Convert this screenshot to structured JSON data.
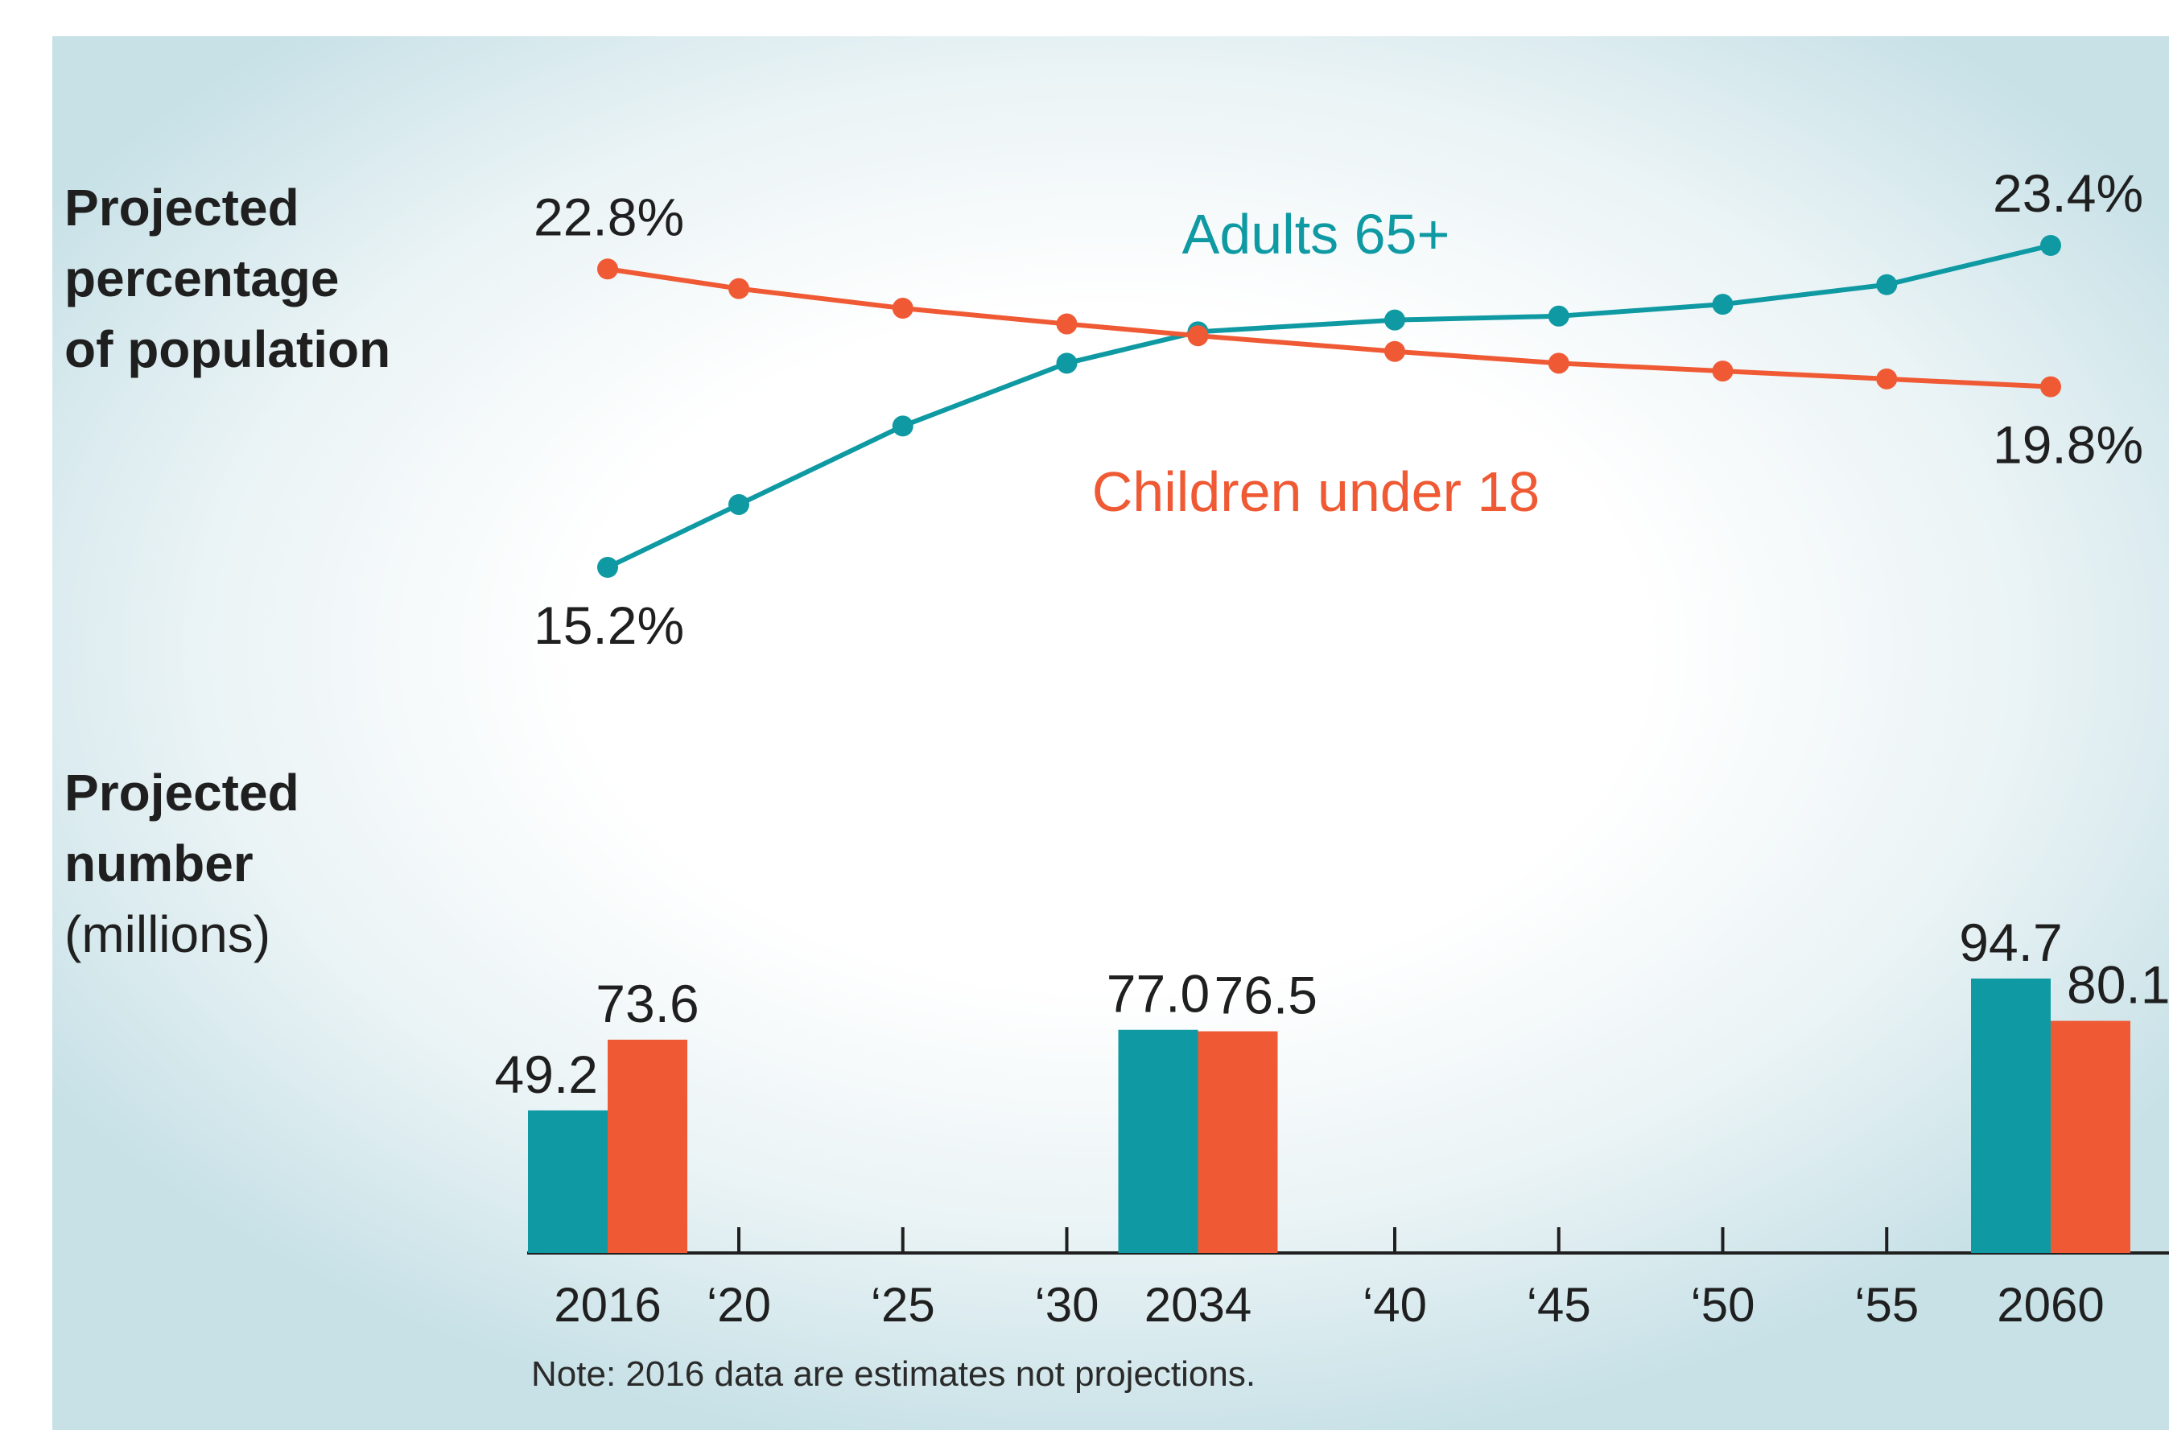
{
  "colors": {
    "teal": "#0f9aa3",
    "orange": "#ef5a35",
    "text": "#1f1f1f"
  },
  "line_section": {
    "title_lines": [
      "Projected",
      "percentage",
      "of population"
    ]
  },
  "bar_section": {
    "title_lines": [
      "Projected",
      "number"
    ],
    "unit": "(millions)"
  },
  "note": "Note: 2016 data are estimates not projections.",
  "chart_data": [
    {
      "type": "line",
      "title": "Projected percentage of population",
      "x": [
        2016,
        2020,
        2025,
        2030,
        2034,
        2040,
        2045,
        2050,
        2055,
        2060
      ],
      "series": [
        {
          "name": "Adults 65+",
          "color": "#0f9aa3",
          "values": [
            15.2,
            16.8,
            18.8,
            20.4,
            21.2,
            21.5,
            21.6,
            21.9,
            22.4,
            23.4
          ]
        },
        {
          "name": "Children under 18",
          "color": "#ef5a35",
          "values": [
            22.8,
            22.3,
            21.8,
            21.4,
            21.1,
            20.7,
            20.4,
            20.2,
            20.0,
            19.8
          ]
        }
      ],
      "point_labels": [
        {
          "series": "Children under 18",
          "x": 2016,
          "text": "22.8%"
        },
        {
          "series": "Adults 65+",
          "x": 2016,
          "text": "15.2%"
        },
        {
          "series": "Adults 65+",
          "x": 2060,
          "text": "23.4%"
        },
        {
          "series": "Children under 18",
          "x": 2060,
          "text": "19.8%"
        }
      ],
      "ylim": [
        15.2,
        23.4
      ]
    },
    {
      "type": "bar",
      "title": "Projected number (millions)",
      "categories": [
        "2016",
        "2034",
        "2060"
      ],
      "category_years": [
        2016,
        2034,
        2060
      ],
      "series": [
        {
          "name": "Adults 65+",
          "color": "#0f9aa3",
          "values": [
            49.2,
            77.0,
            94.7
          ],
          "labels": [
            "49.2",
            "77.0",
            "94.7"
          ]
        },
        {
          "name": "Children under 18",
          "color": "#ef5a35",
          "values": [
            73.6,
            76.5,
            80.1
          ],
          "labels": [
            "73.6",
            "76.5",
            "80.1"
          ]
        }
      ],
      "x_ticks": [
        "2016",
        "‘20",
        "‘25",
        "‘30",
        "2034",
        "‘40",
        "‘45",
        "‘50",
        "‘55",
        "2060"
      ],
      "tick_years": [
        2016,
        2020,
        2025,
        2030,
        2034,
        2040,
        2045,
        2050,
        2055,
        2060
      ],
      "ylim": [
        0,
        100
      ]
    }
  ]
}
